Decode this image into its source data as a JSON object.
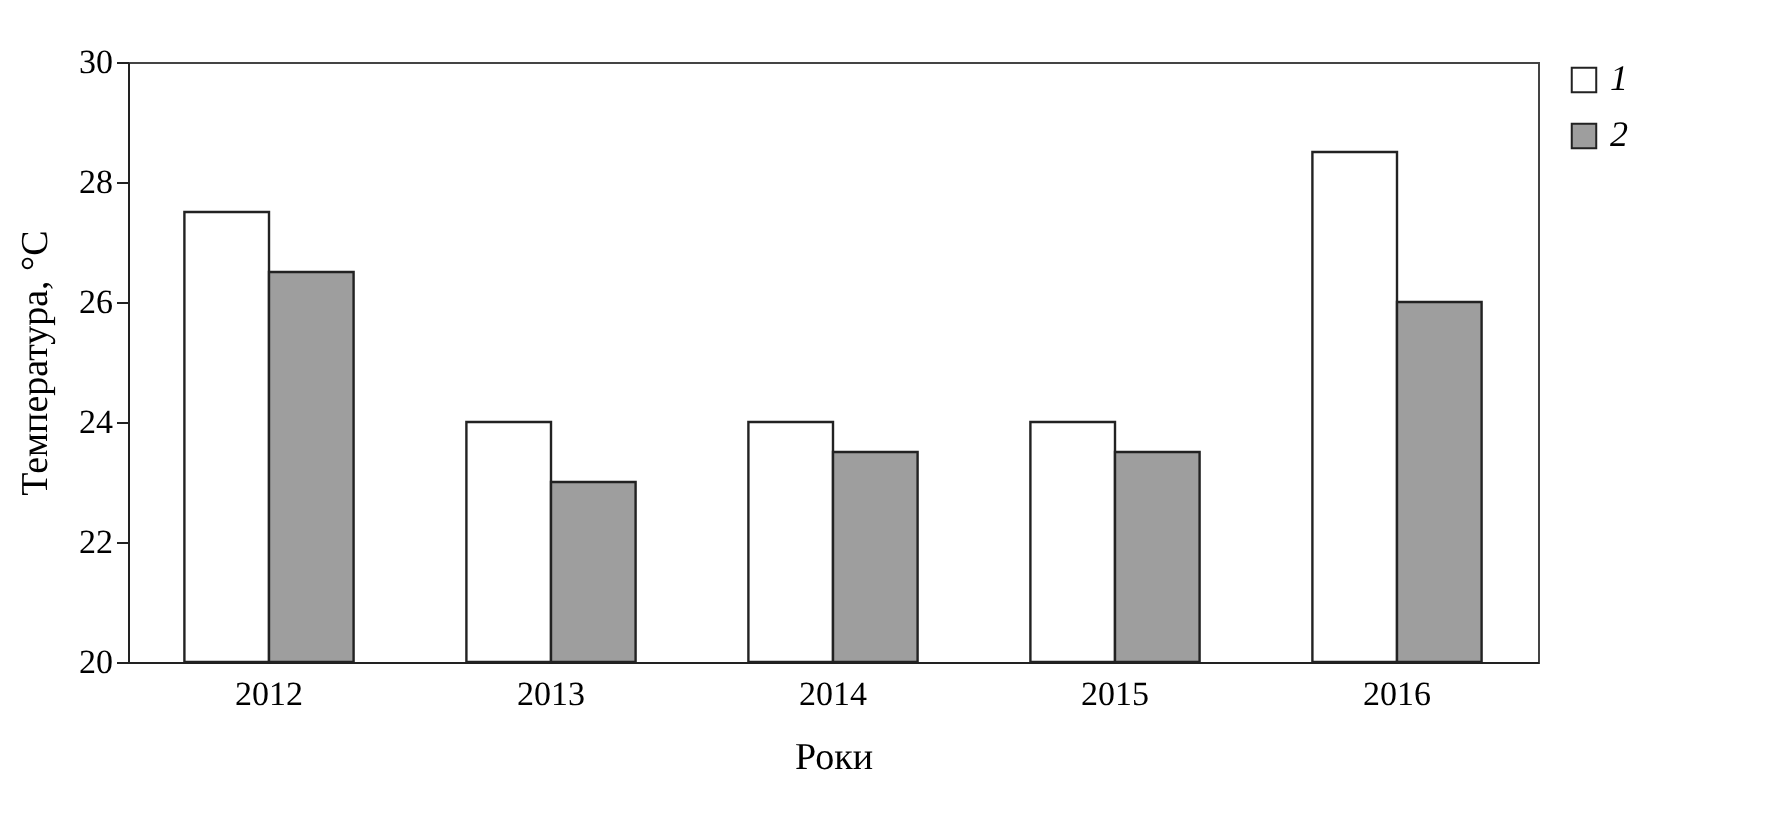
{
  "chart_data": {
    "type": "bar",
    "xlabel": "Роки",
    "ylabel": "Температура, °C",
    "categories": [
      "2012",
      "2013",
      "2014",
      "2015",
      "2016"
    ],
    "series": [
      {
        "name": "1",
        "color": "#ffffff",
        "values": [
          27.5,
          24,
          24,
          24,
          28.5
        ]
      },
      {
        "name": "2",
        "color": "#9e9e9e",
        "values": [
          26.5,
          23,
          23.5,
          23.5,
          26
        ]
      }
    ],
    "ylim": [
      20,
      30
    ],
    "yticks": [
      20,
      22,
      24,
      26,
      28,
      30
    ],
    "grid": false,
    "legend": "right"
  }
}
